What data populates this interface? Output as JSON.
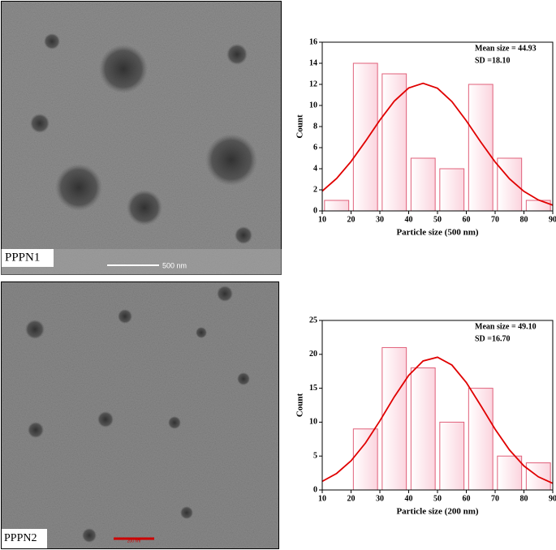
{
  "images": [
    {
      "label": "PPPN1",
      "scale_bar": "500 nm"
    },
    {
      "label": "PPPN2",
      "scale_bar": "200 nm"
    }
  ],
  "chart_data": [
    {
      "type": "histogram",
      "bins": [
        10,
        20,
        30,
        40,
        50,
        60,
        70,
        80,
        90
      ],
      "values": [
        1,
        14,
        13,
        5,
        4,
        12,
        5,
        1
      ],
      "color": "#fde3ea",
      "edge_color": "#e0607a",
      "xlim": [
        10,
        90
      ],
      "ylim": [
        0,
        16
      ],
      "xticks": [
        10,
        20,
        30,
        40,
        50,
        60,
        70,
        80,
        90
      ],
      "yticks": [
        0,
        2,
        4,
        6,
        8,
        10,
        12,
        14,
        16
      ],
      "xlabel": "Particle size (500 nm)",
      "ylabel": "Count",
      "annotations": [
        "Mean size = 44.93",
        "SD =18.10"
      ],
      "fit": {
        "color": "#e00000",
        "x": [
          10,
          15,
          20,
          25,
          30,
          35,
          40,
          45,
          50,
          55,
          60,
          65,
          70,
          75,
          80,
          85,
          90
        ],
        "values": [
          1.88,
          3.08,
          4.69,
          6.6,
          8.61,
          10.41,
          11.66,
          12.1,
          11.63,
          10.37,
          8.55,
          6.54,
          4.64,
          3.04,
          1.85,
          1.04,
          0.55
        ]
      }
    },
    {
      "type": "histogram",
      "bins": [
        20,
        30,
        40,
        50,
        60,
        70,
        80,
        90
      ],
      "values": [
        9,
        21,
        18,
        10,
        15,
        5,
        4
      ],
      "color": "#fde3ea",
      "edge_color": "#e0607a",
      "xlim": [
        10,
        90
      ],
      "ylim": [
        0,
        25
      ],
      "xticks": [
        10,
        20,
        30,
        40,
        50,
        60,
        70,
        80,
        90
      ],
      "yticks": [
        0,
        5,
        10,
        15,
        20,
        25
      ],
      "xlabel": "Particle size (200 nm)",
      "ylabel": "Count",
      "annotations": [
        "Mean size = 49.10",
        "SD =16.70"
      ],
      "fit": {
        "color": "#e00000",
        "x": [
          10,
          15,
          20,
          25,
          30,
          35,
          40,
          45,
          50,
          55,
          60,
          65,
          70,
          75,
          80,
          85,
          90
        ],
        "values": [
          1.27,
          2.44,
          4.3,
          6.92,
          10.19,
          13.73,
          16.9,
          19.02,
          19.57,
          18.42,
          15.84,
          12.46,
          8.96,
          5.89,
          3.54,
          1.94,
          0.98
        ]
      }
    }
  ]
}
